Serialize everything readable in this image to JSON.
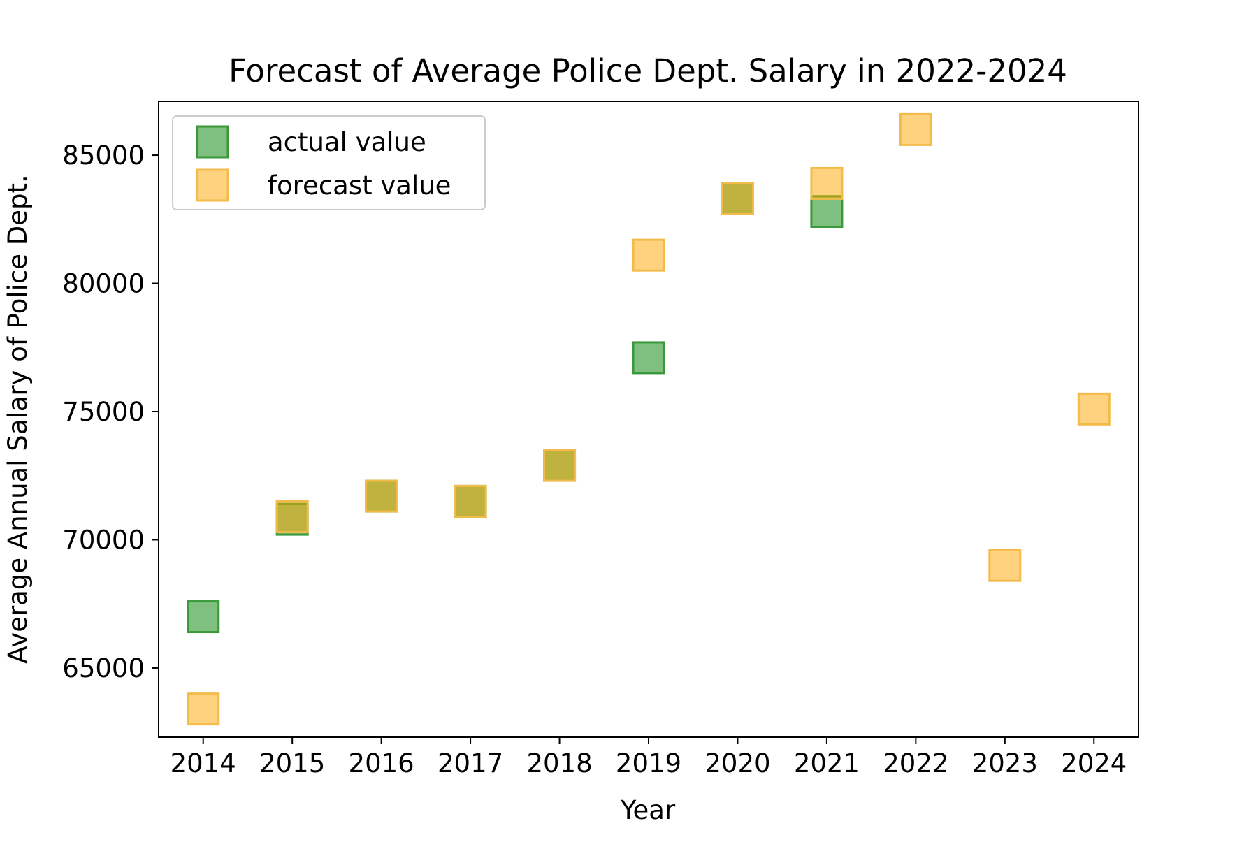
{
  "chart_data": {
    "type": "scatter",
    "title": "Forecast of Average Police Dept. Salary in 2022-2024",
    "xlabel": "Year",
    "ylabel": "Average Annual Salary of Police Dept.",
    "x_ticks": [
      "2014",
      "2015",
      "2016",
      "2017",
      "2018",
      "2019",
      "2020",
      "2021",
      "2022",
      "2023",
      "2024"
    ],
    "y_ticks": [
      65000,
      70000,
      75000,
      80000,
      85000
    ],
    "y_tick_labels": [
      "65000",
      "70000",
      "75000",
      "80000",
      "85000"
    ],
    "xlim": [
      2013.5,
      2024.5
    ],
    "ylim": [
      62300,
      87100
    ],
    "legend": {
      "position": "top-left"
    },
    "grid": false,
    "marker": "square",
    "series": [
      {
        "name": "actual value",
        "color": "#2ca02c",
        "fill": "rgba(0,128,0,0.5)",
        "edge": "#3a9a3a",
        "x": [
          2014,
          2015,
          2016,
          2017,
          2018,
          2019,
          2020,
          2021
        ],
        "y": [
          67000,
          70800,
          71700,
          71500,
          72900,
          77100,
          83300,
          82800
        ]
      },
      {
        "name": "forecast value",
        "color": "#ffa500",
        "fill": "rgba(255,165,0,0.5)",
        "edge": "#f3bb4a",
        "x": [
          2014,
          2015,
          2016,
          2017,
          2018,
          2019,
          2020,
          2021,
          2022,
          2023,
          2024
        ],
        "y": [
          63400,
          70900,
          71700,
          71500,
          72900,
          81100,
          83300,
          83900,
          86000,
          69000,
          75100
        ]
      }
    ]
  }
}
